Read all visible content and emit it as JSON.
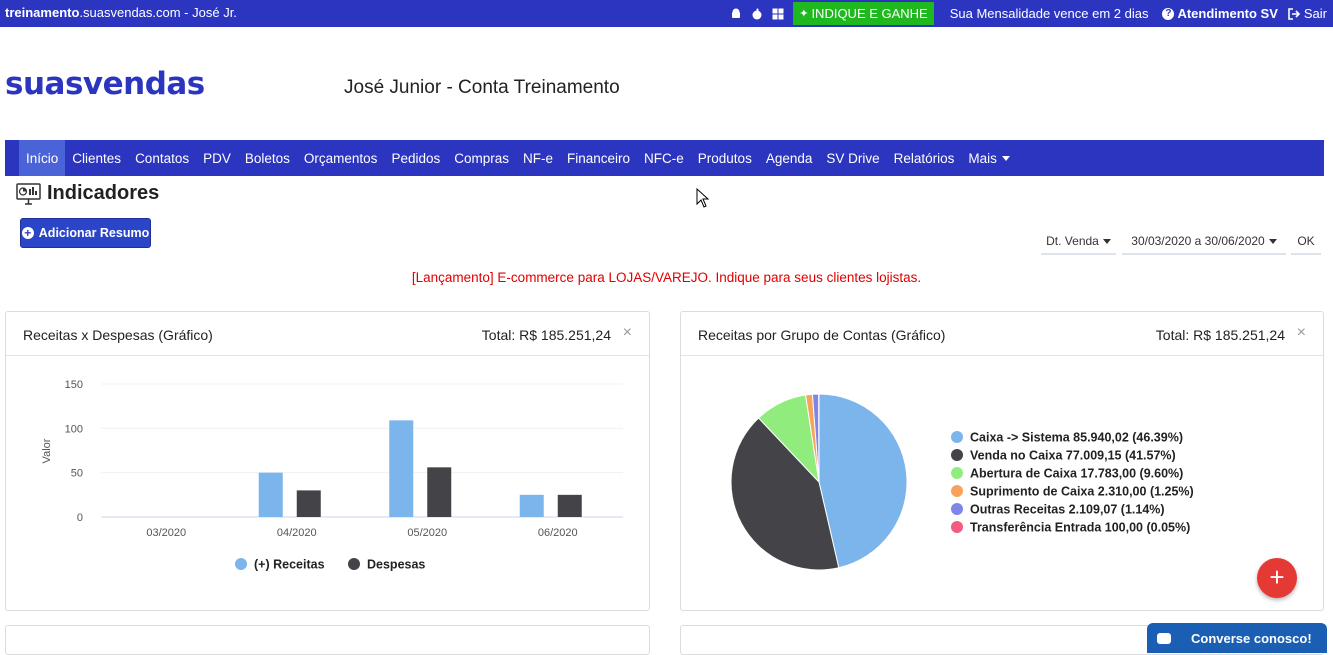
{
  "topbar": {
    "domain_bold": "treinamento",
    "domain_rest": ".suasvendas.com - José Jr.",
    "indique": "INDIQUE E GANHE",
    "mensalidade": "Sua Mensalidade vence em 2 dias",
    "atendimento": "Atendimento SV",
    "sair": "Sair"
  },
  "logo": "suasvendas",
  "account_title": "José Junior - Conta Treinamento",
  "nav": [
    "Início",
    "Clientes",
    "Contatos",
    "PDV",
    "Boletos",
    "Orçamentos",
    "Pedidos",
    "Compras",
    "NF-e",
    "Financeiro",
    "NFC-e",
    "Produtos",
    "Agenda",
    "SV Drive",
    "Relatórios",
    "Mais"
  ],
  "page_title": "Indicadores",
  "add_button": "Adicionar Resumo",
  "filters": {
    "date_type": "Dt. Venda",
    "range": "30/03/2020 a 30/06/2020",
    "ok": "OK"
  },
  "announcement": "[Lançamento] E-commerce para LOJAS/VAREJO. Indique para seus clientes lojistas.",
  "panels": {
    "left": {
      "title": "Receitas x Despesas (Gráfico)",
      "total": "Total: R$ 185.251,24",
      "close": "×"
    },
    "right": {
      "title": "Receitas por Grupo de Contas (Gráfico)",
      "total": "Total: R$ 185.251,24",
      "close": "×"
    }
  },
  "fab": "+",
  "chat": "Converse conosco!",
  "colors": {
    "primary": "#2b35c0",
    "receitas": "#7cb5ec",
    "despesas": "#434348",
    "green": "#1fb91f",
    "red": "#e53935"
  },
  "chart_data": [
    {
      "type": "bar",
      "categories": [
        "03/2020",
        "04/2020",
        "05/2020",
        "06/2020"
      ],
      "series": [
        {
          "name": "(+) Receitas",
          "values": [
            0,
            50,
            109,
            25
          ]
        },
        {
          "name": "Despesas",
          "values": [
            0,
            30,
            56,
            25
          ]
        }
      ],
      "ylabel": "Valor",
      "yticks": [
        0,
        50,
        100,
        150
      ],
      "ylim": [
        0,
        150
      ],
      "legend": "bottom"
    },
    {
      "type": "pie",
      "slices": [
        {
          "label": "Caixa -> Sistema 85.940,02 (46.39%)",
          "value": 46.39,
          "color": "#7cb5ec"
        },
        {
          "label": "Venda no Caixa 77.009,15 (41.57%)",
          "value": 41.57,
          "color": "#434348"
        },
        {
          "label": "Abertura de Caixa 17.783,00 (9.60%)",
          "value": 9.6,
          "color": "#90ed7d"
        },
        {
          "label": "Suprimento de Caixa 2.310,00 (1.25%)",
          "value": 1.25,
          "color": "#f7a35c"
        },
        {
          "label": "Outras Receitas 2.109,07 (1.14%)",
          "value": 1.14,
          "color": "#8085e9"
        },
        {
          "label": "Transferência Entrada 100,00 (0.05%)",
          "value": 0.05,
          "color": "#f15c80"
        }
      ],
      "legend": "right"
    }
  ]
}
